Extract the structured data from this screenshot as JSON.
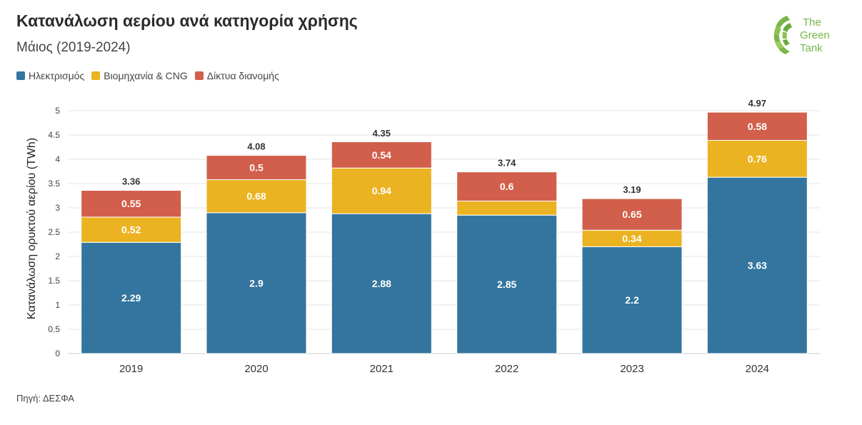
{
  "header": {
    "title": "Κατανάλωση αερίου ανά κατηγορία χρήσης",
    "subtitle": "Μάιος (2019-2024)"
  },
  "logo": {
    "line1": "The",
    "line2": "Green",
    "line3": "Tank",
    "color": "#7ab648"
  },
  "source": "Πηγή: ΔΕΣΦΑ",
  "chart_data": {
    "type": "bar",
    "stacked": true,
    "title": "Κατανάλωση αερίου ανά κατηγορία χρήσης",
    "subtitle": "Μάιος (2019-2024)",
    "xlabel": "",
    "ylabel": "Κατανάλωση ορυκτού αερίου (TWh)",
    "ylim": [
      0,
      5
    ],
    "yticks": [
      "0",
      "0.5",
      "1",
      "1.5",
      "2",
      "2.5",
      "3",
      "3.5",
      "4",
      "4.5",
      "5"
    ],
    "grid": true,
    "legend_position": "top-left",
    "categories": [
      "2019",
      "2020",
      "2021",
      "2022",
      "2023",
      "2024"
    ],
    "series": [
      {
        "name": "Ηλεκτρισμός",
        "color": "#33759f",
        "values": [
          2.29,
          2.9,
          2.88,
          2.85,
          2.2,
          3.63
        ],
        "labels": [
          "2.29",
          "2.9",
          "2.88",
          "2.85",
          "2.2",
          "3.63"
        ]
      },
      {
        "name": "Βιομηχανία & CNG",
        "color": "#ebb321",
        "values": [
          0.52,
          0.68,
          0.94,
          0.29,
          0.34,
          0.76
        ],
        "labels": [
          "0.52",
          "0.68",
          "0.94",
          "",
          "0.34",
          "0.76"
        ]
      },
      {
        "name": "Δίκτυα διανομής",
        "color": "#d15f4c",
        "values": [
          0.55,
          0.5,
          0.54,
          0.6,
          0.65,
          0.58
        ],
        "labels": [
          "0.55",
          "0.5",
          "0.54",
          "0.6",
          "0.65",
          "0.58"
        ]
      }
    ],
    "totals": [
      "3.36",
      "4.08",
      "4.35",
      "3.74",
      "3.19",
      "4.97"
    ],
    "total_values": [
      3.36,
      4.08,
      4.35,
      3.74,
      3.19,
      4.97
    ]
  }
}
